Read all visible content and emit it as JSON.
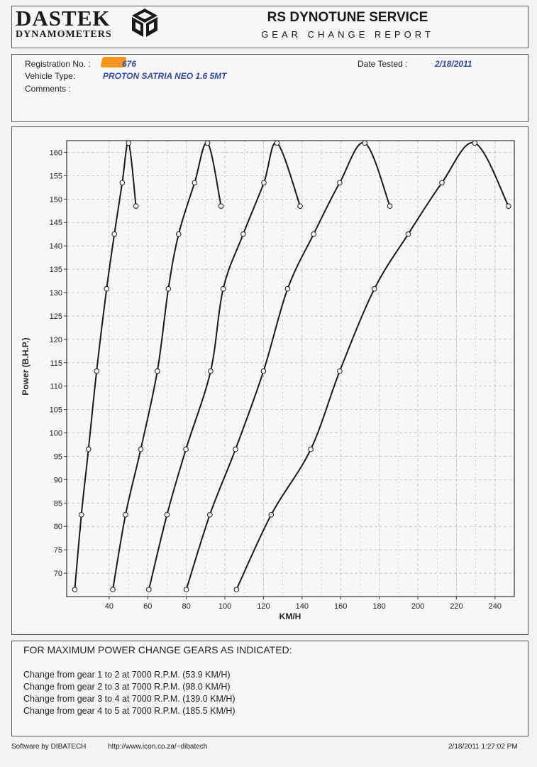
{
  "header": {
    "logo_main": "DASTEK",
    "logo_sub": "DYNAMOMETERS",
    "service_title": "RS DYNOTUNE SERVICE",
    "report_title": "GEAR CHANGE REPORT"
  },
  "info": {
    "registration_label": "Registration No. :",
    "registration_value": "676",
    "vehicle_label": "Vehicle Type:",
    "vehicle_value": "PROTON SATRIA NEO 1.6 5MT",
    "comments_label": "Comments :",
    "date_label": "Date Tested :",
    "date_value": "2/18/2011"
  },
  "chart_data": {
    "type": "line",
    "xlabel": "KM/H",
    "ylabel": "Power (B.H.P.)",
    "xlim": [
      18,
      250
    ],
    "ylim": [
      65,
      162.5
    ],
    "x_ticks": [
      "40",
      "60",
      "80",
      "100",
      "120",
      "140",
      "160",
      "180",
      "200",
      "220",
      "240"
    ],
    "y_ticks": [
      "70",
      "75",
      "80",
      "85",
      "90",
      "95",
      "100",
      "105",
      "110",
      "115",
      "120",
      "125",
      "130",
      "135",
      "140",
      "145",
      "150",
      "155",
      "160"
    ],
    "grid": true,
    "series": [
      {
        "x": [
          22.2,
          25.6,
          29.3,
          33.5,
          38.7,
          42.7,
          46.8,
          50.1,
          53.9
        ],
        "y": [
          66.5,
          82.5,
          96.5,
          113.2,
          130.8,
          142.5,
          153.5,
          162.0,
          148.5
        ]
      },
      {
        "x": [
          41.9,
          48.5,
          56.4,
          65.0,
          70.7,
          76.0,
          84.3,
          91.0,
          98.0
        ],
        "y": [
          66.5,
          82.5,
          96.5,
          113.2,
          130.8,
          142.5,
          153.5,
          162.0,
          148.5
        ]
      },
      {
        "x": [
          60.6,
          70.0,
          79.8,
          92.6,
          99.1,
          109.5,
          120.2,
          127.0,
          139.0
        ],
        "y": [
          66.5,
          82.5,
          96.5,
          113.2,
          130.8,
          142.5,
          153.5,
          162.0,
          148.5
        ]
      },
      {
        "x": [
          80.0,
          92.2,
          105.5,
          120.0,
          132.5,
          146.0,
          159.5,
          172.5,
          185.5
        ],
        "y": [
          66.5,
          82.5,
          96.5,
          113.2,
          130.8,
          142.5,
          153.5,
          162.0,
          148.5
        ]
      },
      {
        "x": [
          106.0,
          124.0,
          144.5,
          159.5,
          177.5,
          195.0,
          212.5,
          229.5,
          247.0
        ],
        "y": [
          66.5,
          82.5,
          96.5,
          113.2,
          130.8,
          142.5,
          153.5,
          162.0,
          148.5
        ]
      }
    ]
  },
  "footer": {
    "heading": "FOR MAXIMUM POWER CHANGE GEARS AS INDICATED:",
    "lines": [
      "Change from gear 1 to 2 at 7000 R.P.M. (53.9 KM/H)",
      "Change from gear 2 to 3 at 7000 R.P.M. (98.0 KM/H)",
      "Change from gear 3 to 4 at 7000 R.P.M. (139.0 KM/H)",
      "Change from gear 4 to 5 at 7000 R.P.M. (185.5 KM/H)"
    ]
  },
  "bottom": {
    "software": "Software by DIBATECH",
    "url": "http://www.icon.co.za/~dibatech",
    "timestamp": "2/18/2011 1:27:02 PM"
  }
}
